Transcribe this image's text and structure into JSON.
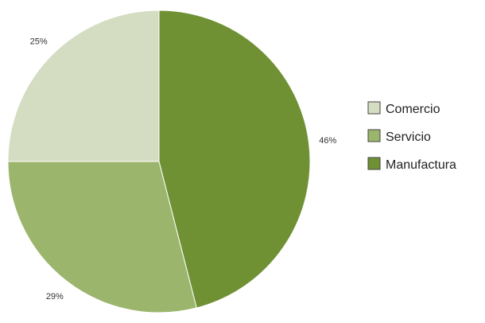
{
  "chart_data": {
    "type": "pie",
    "start_angle_deg": 0,
    "direction": "clockwise",
    "slices": [
      {
        "label": "Manufactura",
        "value": 46,
        "value_label": "46%",
        "color": "#6f9134"
      },
      {
        "label": "Servicio",
        "value": 29,
        "value_label": "29%",
        "color": "#9cb56c"
      },
      {
        "label": "Comercio",
        "value": 25,
        "value_label": "25%",
        "color": "#d4dcc2"
      }
    ],
    "legend": {
      "placement": "right",
      "order": [
        "Comercio",
        "Servicio",
        "Manufactura"
      ]
    },
    "slice_border_color": "#ffffff",
    "legend_box_border_color": "#444444"
  }
}
